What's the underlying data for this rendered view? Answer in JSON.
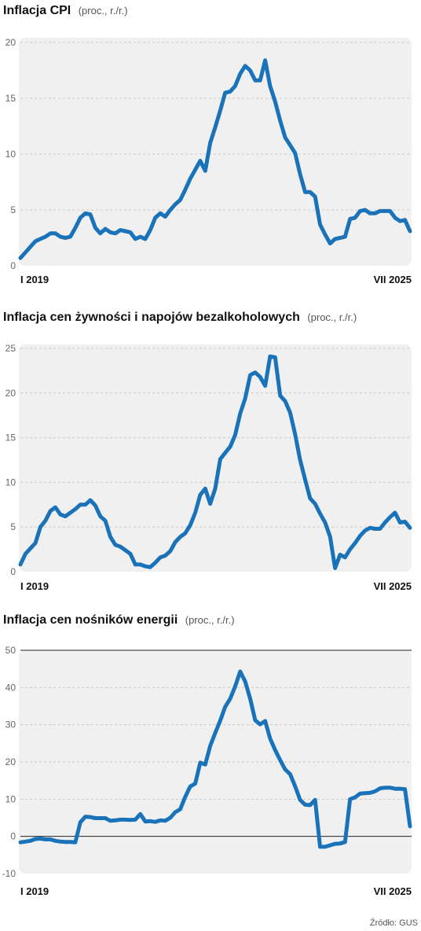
{
  "chart_data": [
    {
      "type": "line",
      "title": "Inflacja CPI",
      "unit": "(proc., r./r.)",
      "ylim": [
        0,
        20
      ],
      "yticks": [
        0,
        5,
        10,
        15,
        20
      ],
      "grid": true,
      "x_start_label": "I 2019",
      "x_end_label": "VII 2025",
      "x": [
        "2019-01",
        "2019-02",
        "2019-03",
        "2019-04",
        "2019-05",
        "2019-06",
        "2019-07",
        "2019-08",
        "2019-09",
        "2019-10",
        "2019-11",
        "2019-12",
        "2020-01",
        "2020-02",
        "2020-03",
        "2020-04",
        "2020-05",
        "2020-06",
        "2020-07",
        "2020-08",
        "2020-09",
        "2020-10",
        "2020-11",
        "2020-12",
        "2021-01",
        "2021-02",
        "2021-03",
        "2021-04",
        "2021-05",
        "2021-06",
        "2021-07",
        "2021-08",
        "2021-09",
        "2021-10",
        "2021-11",
        "2021-12",
        "2022-01",
        "2022-02",
        "2022-03",
        "2022-04",
        "2022-05",
        "2022-06",
        "2022-07",
        "2022-08",
        "2022-09",
        "2022-10",
        "2022-11",
        "2022-12",
        "2023-01",
        "2023-02",
        "2023-03",
        "2023-04",
        "2023-05",
        "2023-06",
        "2023-07",
        "2023-08",
        "2023-09",
        "2023-10",
        "2023-11",
        "2023-12",
        "2024-01",
        "2024-02",
        "2024-03",
        "2024-04",
        "2024-05",
        "2024-06",
        "2024-07",
        "2024-08",
        "2024-09",
        "2024-10",
        "2024-11",
        "2024-12",
        "2025-01",
        "2025-02",
        "2025-03",
        "2025-04",
        "2025-05",
        "2025-06",
        "2025-07"
      ],
      "series": [
        {
          "values": [
            0.7,
            1.2,
            1.7,
            2.2,
            2.4,
            2.6,
            2.9,
            2.9,
            2.6,
            2.5,
            2.6,
            3.4,
            4.3,
            4.7,
            4.6,
            3.4,
            2.9,
            3.3,
            3.0,
            2.9,
            3.2,
            3.1,
            3.0,
            2.4,
            2.6,
            2.4,
            3.2,
            4.3,
            4.7,
            4.4,
            5.0,
            5.5,
            5.9,
            6.8,
            7.8,
            8.6,
            9.4,
            8.5,
            11.0,
            12.4,
            13.9,
            15.5,
            15.6,
            16.1,
            17.2,
            17.9,
            17.5,
            16.6,
            16.6,
            18.4,
            16.1,
            14.7,
            13.0,
            11.5,
            10.8,
            10.1,
            8.2,
            6.6,
            6.6,
            6.2,
            3.7,
            2.8,
            2.0,
            2.4,
            2.5,
            2.6,
            4.2,
            4.3,
            4.9,
            5.0,
            4.7,
            4.7,
            4.9,
            4.9,
            4.9,
            4.3,
            4.0,
            4.1,
            3.1
          ]
        }
      ]
    },
    {
      "type": "line",
      "title": "Inflacja cen żywności i napojów bezalkoholowych",
      "unit": "(proc., r./r.)",
      "ylim": [
        0,
        25
      ],
      "yticks": [
        0,
        5,
        10,
        15,
        20,
        25
      ],
      "grid": true,
      "x_start_label": "I 2019",
      "x_end_label": "VII 2025",
      "x": [
        "2019-01",
        "2019-02",
        "2019-03",
        "2019-04",
        "2019-05",
        "2019-06",
        "2019-07",
        "2019-08",
        "2019-09",
        "2019-10",
        "2019-11",
        "2019-12",
        "2020-01",
        "2020-02",
        "2020-03",
        "2020-04",
        "2020-05",
        "2020-06",
        "2020-07",
        "2020-08",
        "2020-09",
        "2020-10",
        "2020-11",
        "2020-12",
        "2021-01",
        "2021-02",
        "2021-03",
        "2021-04",
        "2021-05",
        "2021-06",
        "2021-07",
        "2021-08",
        "2021-09",
        "2021-10",
        "2021-11",
        "2021-12",
        "2022-01",
        "2022-02",
        "2022-03",
        "2022-04",
        "2022-05",
        "2022-06",
        "2022-07",
        "2022-08",
        "2022-09",
        "2022-10",
        "2022-11",
        "2022-12",
        "2023-01",
        "2023-02",
        "2023-03",
        "2023-04",
        "2023-05",
        "2023-06",
        "2023-07",
        "2023-08",
        "2023-09",
        "2023-10",
        "2023-11",
        "2023-12",
        "2024-01",
        "2024-02",
        "2024-03",
        "2024-04",
        "2024-05",
        "2024-06",
        "2024-07",
        "2024-08",
        "2024-09",
        "2024-10",
        "2024-11",
        "2024-12",
        "2025-01",
        "2025-02",
        "2025-03",
        "2025-04",
        "2025-05",
        "2025-06",
        "2025-07"
      ],
      "series": [
        {
          "values": [
            0.8,
            2.0,
            2.6,
            3.2,
            5.0,
            5.7,
            6.8,
            7.2,
            6.4,
            6.2,
            6.6,
            7.0,
            7.5,
            7.5,
            8.0,
            7.4,
            6.2,
            5.7,
            3.9,
            3.0,
            2.8,
            2.4,
            2.0,
            0.8,
            0.8,
            0.6,
            0.5,
            1.0,
            1.6,
            1.8,
            2.3,
            3.3,
            3.9,
            4.3,
            5.2,
            6.6,
            8.6,
            9.3,
            7.6,
            9.3,
            12.6,
            13.3,
            14.0,
            15.3,
            17.7,
            19.4,
            22.0,
            22.3,
            21.8,
            20.8,
            24.1,
            24.0,
            19.7,
            19.1,
            17.8,
            15.4,
            12.5,
            10.3,
            8.2,
            7.6,
            6.5,
            5.5,
            3.9,
            0.4,
            1.9,
            1.6,
            2.5,
            3.2,
            4.0,
            4.6,
            4.9,
            4.8,
            4.8,
            5.5,
            6.1,
            6.6,
            5.5,
            5.6,
            4.9
          ]
        }
      ]
    },
    {
      "type": "line",
      "title": "Inflacja cen nośników energii",
      "unit": "(proc., r./r.)",
      "ylim": [
        -10,
        50
      ],
      "yticks": [
        -10,
        0,
        10,
        20,
        30,
        40,
        50
      ],
      "grid": true,
      "reference_lines": [
        0,
        50
      ],
      "x_start_label": "I 2019",
      "x_end_label": "VII 2025",
      "x": [
        "2019-01",
        "2019-02",
        "2019-03",
        "2019-04",
        "2019-05",
        "2019-06",
        "2019-07",
        "2019-08",
        "2019-09",
        "2019-10",
        "2019-11",
        "2019-12",
        "2020-01",
        "2020-02",
        "2020-03",
        "2020-04",
        "2020-05",
        "2020-06",
        "2020-07",
        "2020-08",
        "2020-09",
        "2020-10",
        "2020-11",
        "2020-12",
        "2021-01",
        "2021-02",
        "2021-03",
        "2021-04",
        "2021-05",
        "2021-06",
        "2021-07",
        "2021-08",
        "2021-09",
        "2021-10",
        "2021-11",
        "2021-12",
        "2022-01",
        "2022-02",
        "2022-03",
        "2022-04",
        "2022-05",
        "2022-06",
        "2022-07",
        "2022-08",
        "2022-09",
        "2022-10",
        "2022-11",
        "2022-12",
        "2023-01",
        "2023-02",
        "2023-03",
        "2023-04",
        "2023-05",
        "2023-06",
        "2023-07",
        "2023-08",
        "2023-09",
        "2023-10",
        "2023-11",
        "2023-12",
        "2024-01",
        "2024-02",
        "2024-03",
        "2024-04",
        "2024-05",
        "2024-06",
        "2024-07",
        "2024-08",
        "2024-09",
        "2024-10",
        "2024-11",
        "2024-12",
        "2025-01",
        "2025-02",
        "2025-03",
        "2025-04",
        "2025-05",
        "2025-06",
        "2025-07"
      ],
      "series": [
        {
          "values": [
            -1.6,
            -1.4,
            -1.2,
            -0.7,
            -0.6,
            -0.8,
            -0.8,
            -1.2,
            -1.4,
            -1.5,
            -1.5,
            -1.6,
            3.8,
            5.3,
            5.2,
            4.9,
            4.9,
            4.9,
            4.2,
            4.3,
            4.5,
            4.5,
            4.4,
            4.5,
            6.0,
            4.0,
            4.1,
            3.9,
            4.3,
            4.2,
            5.0,
            6.5,
            7.3,
            10.6,
            13.4,
            14.2,
            19.8,
            19.3,
            24.3,
            27.8,
            31.1,
            34.8,
            37.0,
            40.3,
            44.3,
            41.6,
            37.0,
            31.2,
            30.1,
            31.0,
            26.3,
            23.2,
            20.5,
            18.0,
            16.7,
            13.5,
            9.8,
            8.5,
            8.4,
            9.8,
            -2.8,
            -2.8,
            -2.4,
            -2.0,
            -1.9,
            -1.5,
            10.0,
            10.5,
            11.5,
            11.6,
            11.7,
            12.1,
            12.9,
            13.1,
            13.1,
            12.8,
            12.8,
            12.7,
            2.7
          ]
        }
      ]
    }
  ],
  "source": "Źródło: GUS",
  "colors": {
    "line": "#1a73b9",
    "plot_bg": "#f0f0f0",
    "grid": "#c8c8c8"
  }
}
